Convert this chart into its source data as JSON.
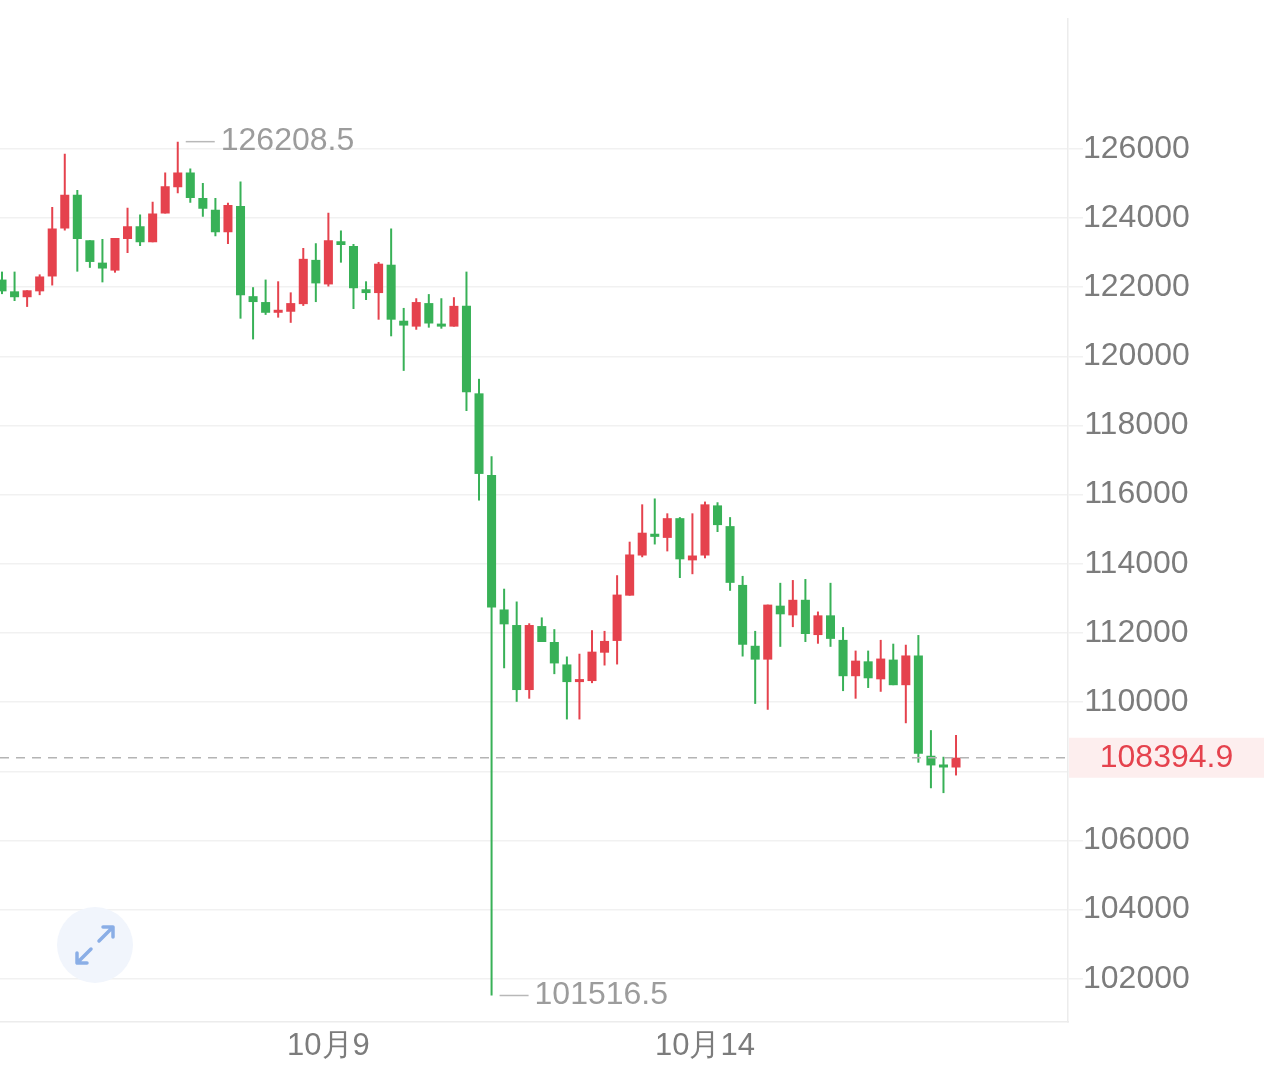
{
  "chart_data": {
    "type": "candlestick",
    "categories": [
      null,
      null,
      null,
      null,
      null,
      null,
      null,
      null,
      null,
      null,
      null,
      null,
      null,
      null,
      null,
      null,
      null,
      null,
      null,
      null,
      null,
      null,
      null,
      null,
      null,
      null,
      "10月9",
      null,
      null,
      null,
      null,
      null,
      null,
      null,
      null,
      null,
      null,
      null,
      null,
      null,
      null,
      null,
      null,
      null,
      null,
      null,
      null,
      null,
      null,
      null,
      null,
      null,
      null,
      null,
      null,
      null,
      "10月14",
      null,
      null,
      null,
      null,
      null,
      null,
      null,
      null,
      null,
      null,
      null,
      null,
      null,
      null,
      null,
      null,
      null,
      null,
      null,
      null
    ],
    "ohlc": [
      [
        122220,
        122450,
        121800,
        121880
      ],
      [
        121880,
        122450,
        121600,
        121710
      ],
      [
        121710,
        121910,
        121430,
        121910
      ],
      [
        121880,
        122370,
        121770,
        122310
      ],
      [
        122310,
        124320,
        122050,
        123700
      ],
      [
        123700,
        125860,
        123640,
        124670
      ],
      [
        124670,
        124810,
        122450,
        123390
      ],
      [
        123360,
        123360,
        122560,
        122730
      ],
      [
        122710,
        123390,
        122140,
        122540
      ],
      [
        122480,
        123420,
        122420,
        123420
      ],
      [
        123390,
        124300,
        122990,
        123760
      ],
      [
        123760,
        124100,
        123190,
        123300
      ],
      [
        123300,
        124470,
        123300,
        124130
      ],
      [
        124130,
        125320,
        124130,
        124920
      ],
      [
        124890,
        126208.5,
        124720,
        125320
      ],
      [
        125320,
        125430,
        124440,
        124580
      ],
      [
        124580,
        125010,
        124040,
        124270
      ],
      [
        124240,
        124580,
        123470,
        123590
      ],
      [
        123590,
        124440,
        123250,
        124380
      ],
      [
        124350,
        125060,
        121090,
        121770
      ],
      [
        121740,
        122000,
        120490,
        121570
      ],
      [
        121570,
        122220,
        121200,
        121260
      ],
      [
        121260,
        122170,
        121120,
        121310
      ],
      [
        121290,
        121850,
        120970,
        121540
      ],
      [
        121510,
        123130,
        121460,
        122820
      ],
      [
        122790,
        123270,
        121570,
        122110
      ],
      [
        122080,
        124150,
        122020,
        123360
      ],
      [
        123330,
        123640,
        122710,
        123220
      ],
      [
        123190,
        123250,
        121370,
        121970
      ],
      [
        121940,
        122170,
        121630,
        121830
      ],
      [
        121830,
        122730,
        121060,
        122680
      ],
      [
        122650,
        123700,
        120580,
        121060
      ],
      [
        121030,
        121400,
        119580,
        120890
      ],
      [
        120860,
        121680,
        120770,
        121570
      ],
      [
        121540,
        121800,
        120830,
        120950
      ],
      [
        120920,
        121680,
        120800,
        120860
      ],
      [
        120860,
        121710,
        120860,
        121460
      ],
      [
        121460,
        122450,
        118420,
        118960
      ],
      [
        118930,
        119350,
        115830,
        116600
      ],
      [
        116570,
        117110,
        101516.5,
        112740
      ],
      [
        112680,
        113280,
        110980,
        112250
      ],
      [
        112230,
        112910,
        110010,
        110350
      ],
      [
        110350,
        112280,
        110100,
        112230
      ],
      [
        112200,
        112450,
        111740,
        111740
      ],
      [
        111740,
        112110,
        110810,
        111120
      ],
      [
        111090,
        111320,
        109500,
        110580
      ],
      [
        110580,
        111400,
        109500,
        110640
      ],
      [
        110610,
        112080,
        110550,
        111460
      ],
      [
        111430,
        112060,
        111060,
        111770
      ],
      [
        111770,
        113670,
        111090,
        113110
      ],
      [
        113080,
        114640,
        113080,
        114270
      ],
      [
        114240,
        115720,
        114190,
        114900
      ],
      [
        114870,
        115890,
        114560,
        114780
      ],
      [
        114750,
        115460,
        114360,
        115320
      ],
      [
        115320,
        115350,
        113590,
        114130
      ],
      [
        114100,
        115460,
        113700,
        114240
      ],
      [
        114240,
        115800,
        114160,
        115720
      ],
      [
        115690,
        115780,
        114920,
        115120
      ],
      [
        115090,
        115350,
        113220,
        113450
      ],
      [
        113390,
        113650,
        111320,
        111660
      ],
      [
        111630,
        112060,
        109950,
        111230
      ],
      [
        111230,
        112820,
        109780,
        112820
      ],
      [
        112790,
        113450,
        111600,
        112540
      ],
      [
        112510,
        113530,
        112170,
        112960
      ],
      [
        112960,
        113560,
        111740,
        111970
      ],
      [
        111940,
        112620,
        111690,
        112510
      ],
      [
        112510,
        113450,
        111600,
        111830
      ],
      [
        111800,
        112170,
        110320,
        110750
      ],
      [
        110750,
        111490,
        110100,
        111200
      ],
      [
        111180,
        111490,
        110410,
        110690
      ],
      [
        110660,
        111800,
        110300,
        111260
      ],
      [
        111230,
        111690,
        110490,
        110490
      ],
      [
        110490,
        111660,
        109390,
        111350
      ],
      [
        111350,
        111940,
        108250,
        108510
      ],
      [
        108450,
        109190,
        107510,
        108170
      ],
      [
        108170,
        108420,
        107370,
        108110
      ],
      [
        108110,
        109050,
        107880,
        108394.9
      ]
    ],
    "colors": [
      "#38b157",
      "#38b157",
      "#e5424d",
      "#e5424d",
      "#e5424d",
      "#e5424d",
      "#38b157",
      "#38b157",
      "#38b157",
      "#e5424d",
      "#e5424d",
      "#38b157",
      "#e5424d",
      "#e5424d",
      "#e5424d",
      "#38b157",
      "#38b157",
      "#38b157",
      "#e5424d",
      "#38b157",
      "#38b157",
      "#38b157",
      "#e5424d",
      "#e5424d",
      "#e5424d",
      "#38b157",
      "#e5424d",
      "#38b157",
      "#38b157",
      "#38b157",
      "#e5424d",
      "#38b157",
      "#38b157",
      "#e5424d",
      "#38b157",
      "#38b157",
      "#e5424d",
      "#38b157",
      "#38b157",
      "#38b157",
      "#38b157",
      "#38b157",
      "#e5424d",
      "#38b157",
      "#38b157",
      "#38b157",
      "#e5424d",
      "#e5424d",
      "#e5424d",
      "#e5424d",
      "#e5424d",
      "#e5424d",
      "#38b157",
      "#e5424d",
      "#38b157",
      "#e5424d",
      "#e5424d",
      "#38b157",
      "#38b157",
      "#38b157",
      "#38b157",
      "#e5424d",
      "#38b157",
      "#e5424d",
      "#38b157",
      "#e5424d",
      "#38b157",
      "#38b157",
      "#e5424d",
      "#38b157",
      "#e5424d",
      "#38b157",
      "#e5424d",
      "#38b157",
      "#38b157",
      "#38b157",
      "#e5424d"
    ],
    "ylim": [
      100750,
      129750
    ],
    "yticks": [
      102000,
      104000,
      106000,
      {
        "value": 108000,
        "label": null
      },
      110000,
      112000,
      114000,
      116000,
      118000,
      120000,
      122000,
      124000,
      126000
    ],
    "grid": "y",
    "ref_lines": [
      {
        "axis": "y",
        "value": 108394.9,
        "label": "108394.9",
        "color": "#b4b4b4",
        "line_style": "dashed"
      }
    ],
    "annotations": [
      "126208.5",
      "101516.5"
    ]
  }
}
